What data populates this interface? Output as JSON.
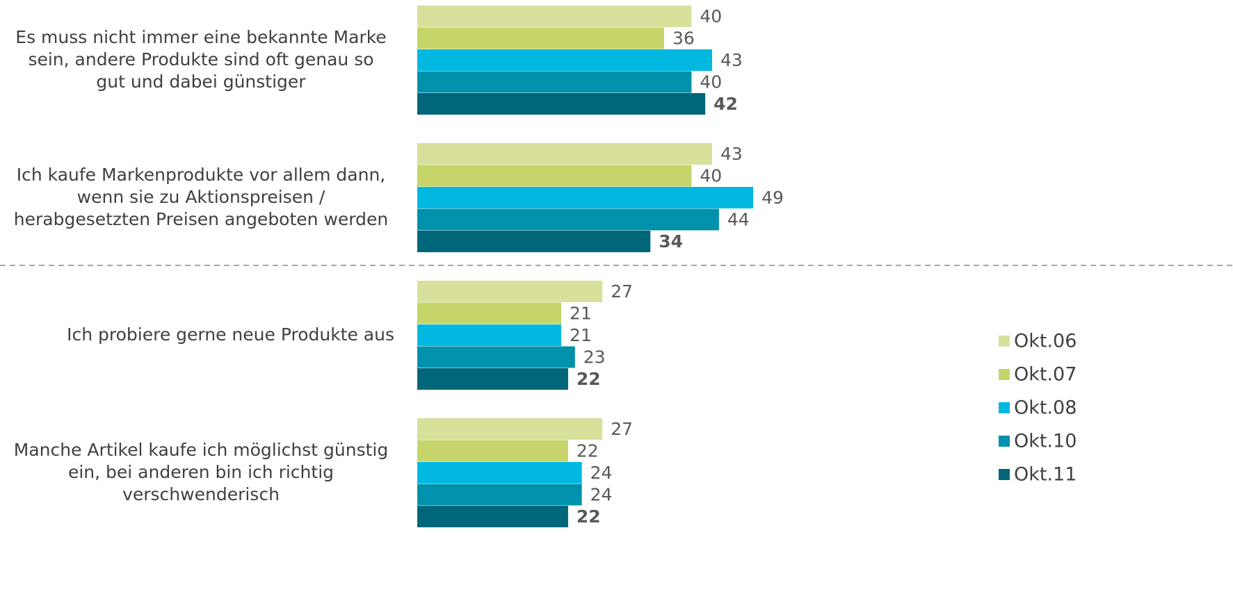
{
  "chart_data": {
    "type": "hbar",
    "categories": [
      [
        "Es muss nicht immer eine bekannte Marke",
        "sein, andere Produkte sind oft genau so",
        "gut und dabei günstiger"
      ],
      [
        "Ich kaufe Markenprodukte vor allem dann,",
        "wenn sie zu Aktionspreisen /",
        "herabgesetzten Preisen angeboten werden"
      ],
      [
        "Ich probiere gerne neue Produkte aus"
      ],
      [
        "Manche Artikel kaufe ich möglichst günstig",
        "ein, bei anderen bin ich richtig",
        "verschwenderisch"
      ]
    ],
    "series": [
      {
        "name": "Okt.06",
        "color": "#d9e09c",
        "values": [
          40,
          43,
          27,
          27
        ]
      },
      {
        "name": "Okt.07",
        "color": "#c6d46a",
        "values": [
          36,
          40,
          21,
          22
        ]
      },
      {
        "name": "Okt.08",
        "color": "#00b8e0",
        "values": [
          43,
          49,
          21,
          24
        ]
      },
      {
        "name": "Okt.10",
        "color": "#0091ad",
        "values": [
          40,
          44,
          23,
          24
        ]
      },
      {
        "name": "Okt.11",
        "color": "#00667a",
        "values": [
          42,
          34,
          22,
          22
        ]
      }
    ],
    "legend": "right"
  }
}
